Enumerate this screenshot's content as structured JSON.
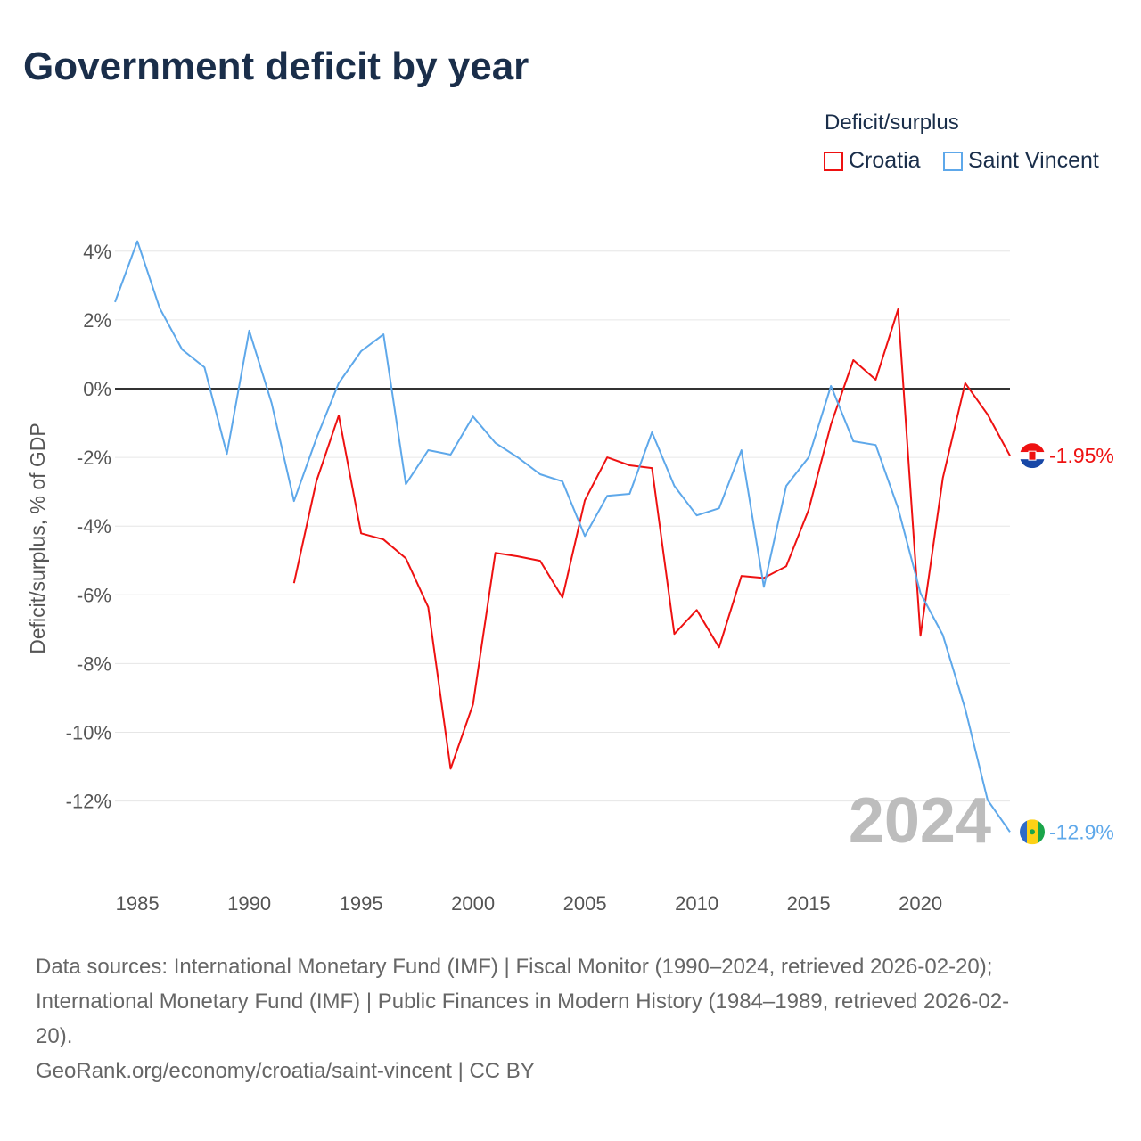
{
  "chart_data": {
    "type": "line",
    "title": "Government deficit by year",
    "xlabel": "",
    "ylabel": "Deficit/surplus, % of GDP",
    "legend_title": "Deficit/surplus",
    "legend_position": "top-right",
    "xlim": [
      1984,
      2024
    ],
    "ylim": [
      -13.5,
      4.5
    ],
    "x_ticks": [
      1985,
      1990,
      1995,
      2000,
      2005,
      2010,
      2015,
      2020
    ],
    "y_ticks": [
      4,
      2,
      0,
      -2,
      -4,
      -6,
      -8,
      -10,
      -12
    ],
    "y_tick_labels": [
      "4%",
      "2%",
      "0%",
      "-2%",
      "-4%",
      "-6%",
      "-8%",
      "-10%",
      "-12%"
    ],
    "grid": true,
    "year_watermark": "2024",
    "series": [
      {
        "name": "Croatia",
        "color": "#ee1111",
        "end_label": "-1.95%",
        "start_year": 1992,
        "values": [
          -5.66,
          -2.7,
          -0.78,
          -4.21,
          -4.39,
          -4.94,
          -6.36,
          -11.06,
          -9.19,
          -4.78,
          -4.88,
          -5.01,
          -6.08,
          -3.25,
          -2.0,
          -2.23,
          -2.31,
          -7.14,
          -6.44,
          -7.53,
          -5.45,
          -5.51,
          -5.17,
          -3.53,
          -1.04,
          0.83,
          0.26,
          2.31,
          -7.19,
          -2.6,
          0.16,
          -0.75,
          -1.95
        ]
      },
      {
        "name": "Saint Vincent",
        "color": "#5ea8ea",
        "end_label": "-12.9%",
        "start_year": 1984,
        "values": [
          2.52,
          4.29,
          2.34,
          1.14,
          0.62,
          -1.9,
          1.69,
          -0.42,
          -3.27,
          -1.45,
          0.16,
          1.09,
          1.58,
          -2.78,
          -1.79,
          -1.92,
          -0.81,
          -1.58,
          -2.0,
          -2.49,
          -2.7,
          -4.29,
          -3.12,
          -3.06,
          -1.27,
          -2.83,
          -3.69,
          -3.48,
          -1.79,
          -5.77,
          -2.83,
          -2.0,
          0.08,
          -1.53,
          -1.64,
          -3.48,
          -5.95,
          -7.17,
          -9.32,
          -11.97,
          -12.9
        ]
      }
    ]
  },
  "footer": {
    "sources_line1": "Data sources: International Monetary Fund (IMF) | Fiscal Monitor (1990–2024, retrieved 2026-02-20);",
    "sources_line2": "International Monetary Fund (IMF) | Public Finances in Modern History (1984–1989, retrieved 2026-02-",
    "sources_line3": "20).",
    "attribution": "GeoRank.org/economy/croatia/saint-vincent | CC BY"
  }
}
